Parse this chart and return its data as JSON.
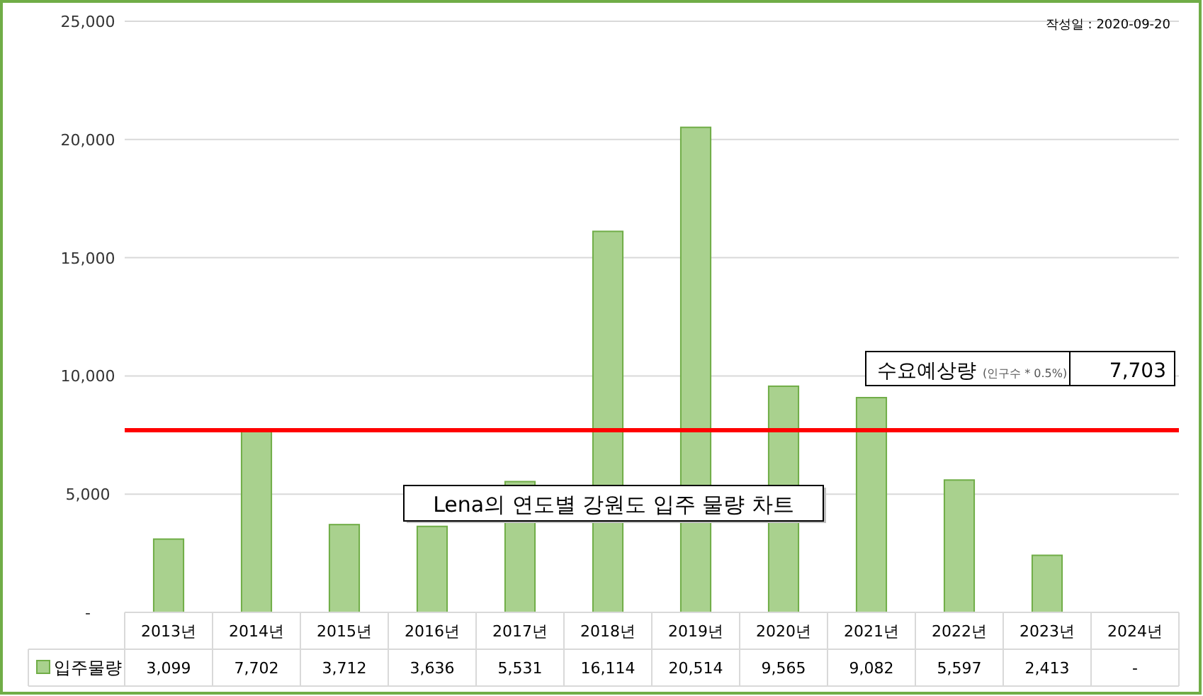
{
  "chart_data": {
    "type": "bar",
    "title": "Lena의 연도별 강원도 입주 물량 차트",
    "annotations": [
      "작성일 :   2020-09-20",
      {
        "text": "7,703",
        "y": 7703
      }
    ],
    "categories": [
      "2013년",
      "2014년",
      "2015년",
      "2016년",
      "2017년",
      "2018년",
      "2019년",
      "2020년",
      "2021년",
      "2022년",
      "2023년",
      "2024년"
    ],
    "series": [
      {
        "name": "입주물량",
        "color": "#a9d18e",
        "values": [
          3099,
          7702,
          3712,
          3636,
          5531,
          16114,
          20514,
          9565,
          9082,
          5597,
          2413,
          null
        ],
        "value_labels": [
          "3,099",
          "7,702",
          "3,712",
          "3,636",
          "5,531",
          "16,114",
          "20,514",
          "9,565",
          "9,082",
          "5,597",
          "2,413",
          "-"
        ]
      }
    ],
    "ylim": [
      0,
      25000
    ],
    "yticks": [
      {
        "value": 0,
        "label": "-"
      },
      {
        "value": 5000,
        "label": "5,000"
      },
      {
        "value": 10000,
        "label": "10,000"
      },
      {
        "value": 15000,
        "label": "15,000"
      },
      {
        "value": 20000,
        "label": "20,000"
      },
      {
        "value": 25000,
        "label": "25,000"
      }
    ],
    "grid": "y",
    "legend": "bottom",
    "ref_lines": [
      {
        "axis": "y",
        "value": 7703,
        "label": "수요예상량 $_{(인구수 * 0.5%)}$",
        "color": "#ff0000"
      }
    ]
  }
}
